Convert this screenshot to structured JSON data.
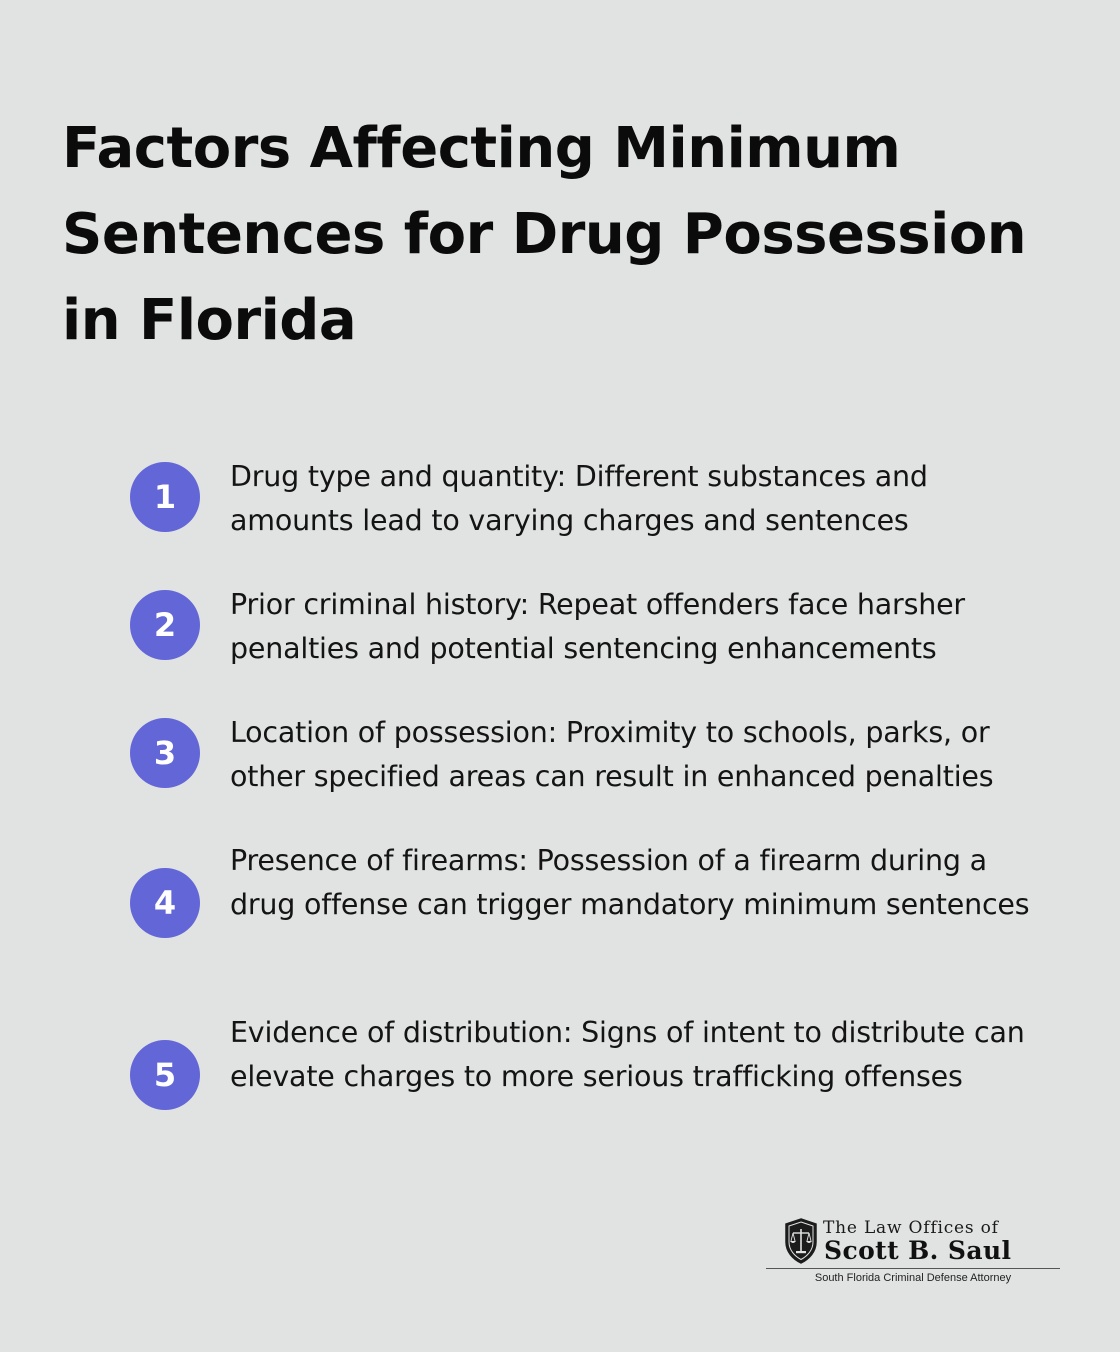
{
  "title": "Factors Affecting Minimum Sentences for Drug Possession in Florida",
  "items": [
    {
      "number": "1",
      "text": "Drug type and quantity: Different substances and amounts lead to varying charges and sentences"
    },
    {
      "number": "2",
      "text": "Prior criminal history: Repeat offenders face harsher penalties and potential sentencing enhancements"
    },
    {
      "number": "3",
      "text": "Location of possession: Proximity to schools, parks, or other specified areas can result in enhanced penalties"
    },
    {
      "number": "4",
      "text": "Presence of firearms: Possession of a firearm during a drug offense can trigger mandatory minimum sentences"
    },
    {
      "number": "5",
      "text": "Evidence of distribution: Signs of intent to distribute can elevate charges to more serious trafficking offenses"
    }
  ],
  "logo": {
    "line1": "The Law Offices of",
    "line2": "Scott B. Saul",
    "tagline": "South Florida Criminal Defense Attorney",
    "icon": "scales-of-justice-shield-icon"
  },
  "colors": {
    "background": "#e1e3e2",
    "badge": "#6366d6",
    "text": "#111111"
  }
}
